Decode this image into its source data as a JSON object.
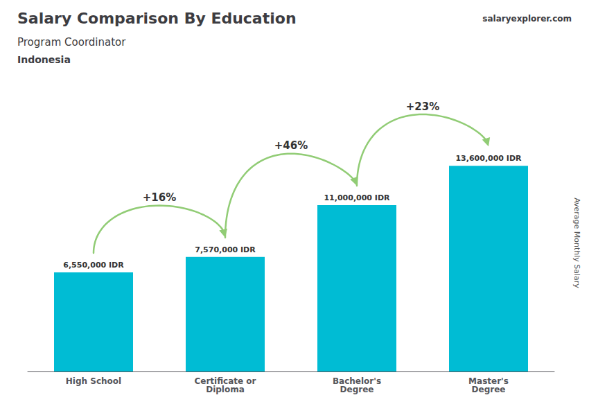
{
  "chart_data": {
    "type": "bar",
    "title": "Salary Comparison By Education",
    "subtitle": [
      "Program Coordinator",
      "Indonesia"
    ],
    "ylabel": "Average Monthly Salary",
    "categories": [
      "High School",
      "Certificate or\nDiploma",
      "Bachelor's\nDegree",
      "Master's\nDegree"
    ],
    "values": [
      6550000,
      7570000,
      11000000,
      13600000
    ],
    "value_labels": [
      "6,550,000 IDR",
      "7,570,000 IDR",
      "11,000,000 IDR",
      "13,600,000 IDR"
    ],
    "data_labels": true,
    "color": "#00bcd4",
    "ylim": [
      0,
      17000000
    ],
    "tick_labels": "x",
    "grid": false,
    "annotations": [
      {
        "text": "salaryexplorer.com"
      },
      {
        "text": "+16%",
        "from": "High School",
        "to": "Certificate or\nDiploma"
      },
      {
        "text": "+46%",
        "from": "Certificate or\nDiploma",
        "to": "Bachelor's\nDegree"
      },
      {
        "text": "+23%",
        "from": "Bachelor's\nDegree",
        "to": "Master's\nDegree"
      }
    ]
  }
}
